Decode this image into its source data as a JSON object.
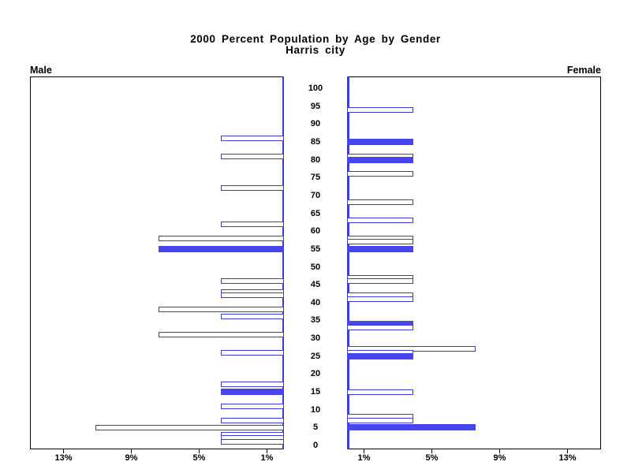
{
  "title": {
    "line1": "2000 Percent Population by Age by Gender",
    "line2": "Harris city"
  },
  "panels": {
    "male_label": "Male",
    "female_label": "Female"
  },
  "colors": {
    "bar_outline_blue": "#3b3bd8",
    "bar_fill_blue": "#4646ec",
    "axis_black": "#000000",
    "background": "#ffffff"
  },
  "chart_data": {
    "type": "bar",
    "variant": "population-pyramid",
    "title": "2000 Percent Population by Age by Gender",
    "subtitle": "Harris city",
    "grid": false,
    "legend": false,
    "age_axis": {
      "min": 0,
      "max": 100,
      "tick_interval": 5,
      "tick_labels": [
        "0",
        "5",
        "10",
        "15",
        "20",
        "25",
        "30",
        "35",
        "40",
        "45",
        "50",
        "55",
        "60",
        "65",
        "70",
        "75",
        "80",
        "85",
        "90",
        "95",
        "100"
      ]
    },
    "pct_axis": {
      "min": 0,
      "max": 15,
      "tick_values": [
        1,
        5,
        9,
        13
      ],
      "male_tick_labels": [
        "13%",
        "9%",
        "5%",
        "1%"
      ],
      "female_tick_labels": [
        "1%",
        "5%",
        "9%",
        "13%"
      ]
    },
    "series": [
      {
        "name": "Male",
        "side": "left",
        "points": [
          {
            "age": 86,
            "value": 3.7,
            "filled": false
          },
          {
            "age": 81,
            "value": 3.7,
            "filled": false
          },
          {
            "age": 72,
            "value": 3.7,
            "filled": false
          },
          {
            "age": 62,
            "value": 3.7,
            "filled": false
          },
          {
            "age": 58,
            "value": 7.4,
            "filled": false
          },
          {
            "age": 55,
            "value": 7.4,
            "filled": true
          },
          {
            "age": 46,
            "value": 3.7,
            "filled": false
          },
          {
            "age": 43,
            "value": 3.7,
            "filled": false
          },
          {
            "age": 42,
            "value": 3.7,
            "filled": false
          },
          {
            "age": 38,
            "value": 7.4,
            "filled": false
          },
          {
            "age": 36,
            "value": 3.7,
            "filled": false
          },
          {
            "age": 31,
            "value": 7.4,
            "filled": false
          },
          {
            "age": 26,
            "value": 3.7,
            "filled": false
          },
          {
            "age": 17,
            "value": 3.7,
            "filled": false
          },
          {
            "age": 15,
            "value": 3.7,
            "filled": true
          },
          {
            "age": 11,
            "value": 3.7,
            "filled": false
          },
          {
            "age": 7,
            "value": 3.7,
            "filled": false
          },
          {
            "age": 5,
            "value": 11.1,
            "filled": false
          },
          {
            "age": 3,
            "value": 3.7,
            "filled": false
          },
          {
            "age": 2,
            "value": 3.7,
            "filled": false
          },
          {
            "age": 1,
            "value": 3.7,
            "filled": false
          }
        ]
      },
      {
        "name": "Female",
        "side": "right",
        "points": [
          {
            "age": 94,
            "value": 3.9,
            "filled": false
          },
          {
            "age": 85,
            "value": 3.9,
            "filled": true
          },
          {
            "age": 81,
            "value": 3.9,
            "filled": false
          },
          {
            "age": 80,
            "value": 3.9,
            "filled": true
          },
          {
            "age": 76,
            "value": 3.9,
            "filled": false
          },
          {
            "age": 68,
            "value": 3.9,
            "filled": false
          },
          {
            "age": 63,
            "value": 3.9,
            "filled": false
          },
          {
            "age": 58,
            "value": 3.9,
            "filled": false
          },
          {
            "age": 57,
            "value": 3.9,
            "filled": false
          },
          {
            "age": 55,
            "value": 3.9,
            "filled": true
          },
          {
            "age": 47,
            "value": 3.9,
            "filled": false
          },
          {
            "age": 46,
            "value": 3.9,
            "filled": false
          },
          {
            "age": 42,
            "value": 3.9,
            "filled": false
          },
          {
            "age": 41,
            "value": 3.9,
            "filled": false
          },
          {
            "age": 34,
            "value": 3.9,
            "filled": true
          },
          {
            "age": 33,
            "value": 3.9,
            "filled": false
          },
          {
            "age": 27,
            "value": 7.6,
            "filled": false
          },
          {
            "age": 26,
            "value": 3.9,
            "filled": false
          },
          {
            "age": 25,
            "value": 3.9,
            "filled": true
          },
          {
            "age": 15,
            "value": 3.9,
            "filled": false
          },
          {
            "age": 8,
            "value": 3.9,
            "filled": false
          },
          {
            "age": 7,
            "value": 3.9,
            "filled": false
          },
          {
            "age": 5,
            "value": 7.6,
            "filled": true
          }
        ]
      }
    ]
  }
}
